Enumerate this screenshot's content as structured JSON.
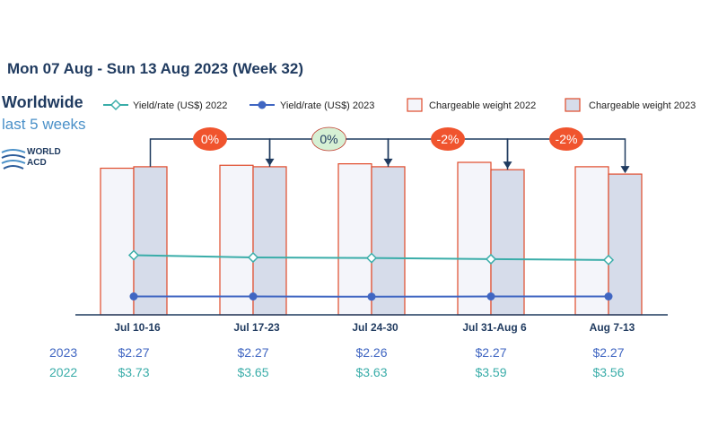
{
  "header": {
    "title": "Mon 07 Aug - Sun 13 Aug 2023 (Week 32)",
    "region": "Worldwide",
    "period": "last 5 weeks",
    "logo_text": [
      "WORLD",
      "ACD"
    ]
  },
  "colors": {
    "title": "#1f3a5f",
    "yield2022": "#3aada9",
    "yield2023": "#4066c2",
    "bar_border": "#e04a2a",
    "bar2022_fill": "#f4f5fa",
    "bar2023_fill": "#d6dcea",
    "axis": "#1f3a5f",
    "badge_red": "#f0542e",
    "badge_green": "#d6f0d4"
  },
  "chart_data": {
    "type": "bar",
    "categories": [
      "Jul 10-16",
      "Jul 17-23",
      "Jul 24-30",
      "Jul 31-Aug 6",
      "Aug 7-13"
    ],
    "series": [
      {
        "name": "Chargeable weight 2022",
        "kind": "bar",
        "values": [
          100,
          102,
          103,
          104,
          101
        ]
      },
      {
        "name": "Chargeable weight 2023",
        "kind": "bar",
        "values": [
          101,
          101,
          101,
          99,
          96
        ]
      },
      {
        "name": "Yield/rate (US$) 2022",
        "kind": "line",
        "values": [
          3.73,
          3.65,
          3.63,
          3.59,
          3.56
        ]
      },
      {
        "name": "Yield/rate (US$) 2023",
        "kind": "line",
        "values": [
          2.27,
          2.27,
          2.26,
          2.27,
          2.27
        ]
      }
    ],
    "changes": [
      {
        "label": "0%",
        "color": "red"
      },
      {
        "label": "0%",
        "color": "green"
      },
      {
        "label": "-2%",
        "color": "red"
      },
      {
        "label": "-2%",
        "color": "red"
      }
    ],
    "table": {
      "rows": [
        {
          "label": "2023",
          "values": [
            "$2.27",
            "$2.27",
            "$2.26",
            "$2.27",
            "$2.27"
          ]
        },
        {
          "label": "2022",
          "values": [
            "$3.73",
            "$3.65",
            "$3.63",
            "$3.59",
            "$3.56"
          ]
        }
      ]
    },
    "legend": [
      {
        "label": "Yield/rate (US$) 2022",
        "kind": "line-diamond"
      },
      {
        "label": "Yield/rate (US$) 2023",
        "kind": "line-dot"
      },
      {
        "label": "Chargeable weight 2022",
        "kind": "box-light"
      },
      {
        "label": "Chargeable weight 2023",
        "kind": "box-dark"
      }
    ],
    "legend_position": "top"
  }
}
